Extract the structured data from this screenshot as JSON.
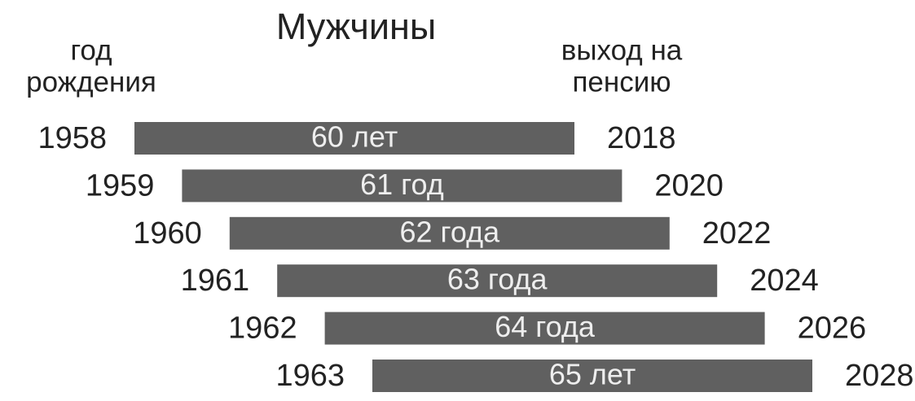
{
  "title": "Мужчины",
  "left_header": [
    "год",
    "рождения"
  ],
  "right_header": [
    "выход на",
    "пенсию"
  ],
  "rows": [
    {
      "birth_year": "1958",
      "age": "60 лет",
      "retirement_year": "2018"
    },
    {
      "birth_year": "1959",
      "age": "61 год",
      "retirement_year": "2020"
    },
    {
      "birth_year": "1960",
      "age": "62 года",
      "retirement_year": "2022"
    },
    {
      "birth_year": "1961",
      "age": "63 года",
      "retirement_year": "2024"
    },
    {
      "birth_year": "1962",
      "age": "64 года",
      "retirement_year": "2026"
    },
    {
      "birth_year": "1963",
      "age": "65 лет",
      "retirement_year": "2028"
    }
  ]
}
